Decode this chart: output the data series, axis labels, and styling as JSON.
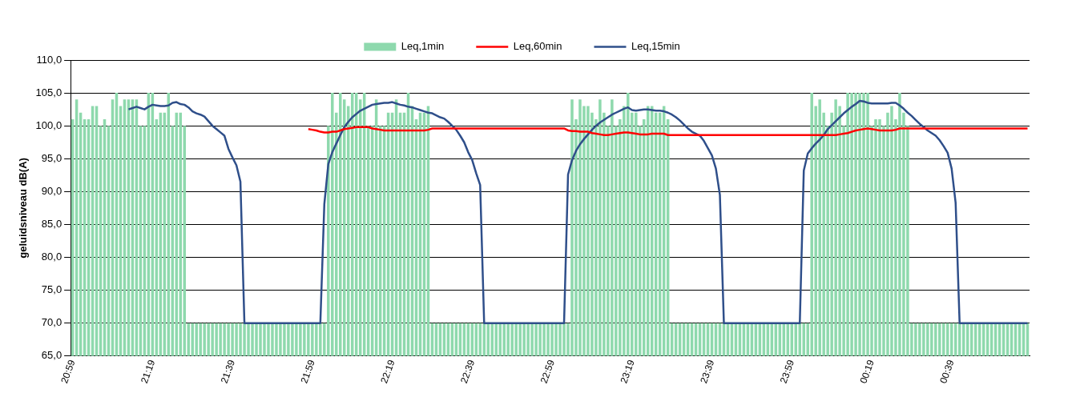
{
  "chart_data": {
    "type": "bar",
    "ylabel": "geluidsniveau dB(A)",
    "ylim": [
      65,
      110
    ],
    "yticks": [
      {
        "value": 65,
        "label": "65,0"
      },
      {
        "value": 70,
        "label": "70,0"
      },
      {
        "value": 75,
        "label": "75,0"
      },
      {
        "value": 80,
        "label": "80,0"
      },
      {
        "value": 85,
        "label": "85,0"
      },
      {
        "value": 90,
        "label": "90,0"
      },
      {
        "value": 95,
        "label": "95,0"
      },
      {
        "value": 100,
        "label": "100,0"
      },
      {
        "value": 105,
        "label": "105,0"
      },
      {
        "value": 110,
        "label": "110,0"
      }
    ],
    "grid": "y",
    "legend": "top",
    "marker": "none",
    "line_style": "solid",
    "categories": [
      "20:59",
      null,
      null,
      null,
      null,
      null,
      null,
      null,
      null,
      null,
      null,
      null,
      null,
      null,
      null,
      null,
      null,
      null,
      null,
      null,
      "21:19",
      null,
      null,
      null,
      null,
      null,
      null,
      null,
      null,
      null,
      null,
      null,
      null,
      null,
      null,
      null,
      null,
      null,
      null,
      null,
      "21:39",
      null,
      null,
      null,
      null,
      null,
      null,
      null,
      null,
      null,
      null,
      null,
      null,
      null,
      null,
      null,
      null,
      null,
      null,
      null,
      "21:59",
      null,
      null,
      null,
      null,
      null,
      null,
      null,
      null,
      null,
      null,
      null,
      null,
      null,
      null,
      null,
      null,
      null,
      null,
      null,
      "22:19",
      null,
      null,
      null,
      null,
      null,
      null,
      null,
      null,
      null,
      null,
      null,
      null,
      null,
      null,
      null,
      null,
      null,
      null,
      null,
      "22:39",
      null,
      null,
      null,
      null,
      null,
      null,
      null,
      null,
      null,
      null,
      null,
      null,
      null,
      null,
      null,
      null,
      null,
      null,
      null,
      "22:59",
      null,
      null,
      null,
      null,
      null,
      null,
      null,
      null,
      null,
      null,
      null,
      null,
      null,
      null,
      null,
      null,
      null,
      null,
      null,
      "23:19",
      null,
      null,
      null,
      null,
      null,
      null,
      null,
      null,
      null,
      null,
      null,
      null,
      null,
      null,
      null,
      null,
      null,
      null,
      null,
      "23:39",
      null,
      null,
      null,
      null,
      null,
      null,
      null,
      null,
      null,
      null,
      null,
      null,
      null,
      null,
      null,
      null,
      null,
      null,
      null,
      "23:59",
      null,
      null,
      null,
      null,
      null,
      null,
      null,
      null,
      null,
      null,
      null,
      null,
      null,
      null,
      null,
      null,
      null,
      null,
      null,
      "00:19",
      null,
      null,
      null,
      null,
      null,
      null,
      null,
      null,
      null,
      null,
      null,
      null,
      null,
      null,
      null,
      null,
      null,
      null,
      null,
      "00:39",
      null,
      null,
      null,
      null,
      null,
      null,
      null,
      null,
      null,
      null,
      null,
      null,
      null,
      null,
      null,
      null,
      null,
      null,
      null
    ],
    "series": [
      {
        "name": "Leq,1min",
        "color": "#8ed9ad",
        "values": [
          101,
          104,
          102,
          101,
          101,
          103,
          103,
          100,
          101,
          100,
          104,
          105,
          103,
          104,
          104,
          104,
          104,
          100,
          100,
          105,
          105,
          101,
          102,
          102,
          105,
          100,
          102,
          102,
          100,
          70,
          70,
          70,
          70,
          70,
          70,
          70,
          70,
          70,
          70,
          70,
          70,
          70,
          70,
          70,
          70,
          70,
          70,
          70,
          70,
          70,
          70,
          70,
          70,
          70,
          70,
          70,
          70,
          70,
          70,
          70,
          70,
          70,
          70,
          70,
          100,
          105,
          102,
          105,
          104,
          103,
          105,
          105,
          104,
          105,
          100,
          100,
          104,
          100,
          100,
          102,
          102,
          104,
          102,
          102,
          105,
          103,
          101,
          102,
          102,
          103,
          70,
          70,
          70,
          70,
          70,
          70,
          70,
          70,
          70,
          70,
          70,
          70,
          70,
          70,
          70,
          70,
          70,
          70,
          70,
          70,
          70,
          70,
          70,
          70,
          70,
          70,
          70,
          70,
          70,
          70,
          70,
          70,
          70,
          70,
          70,
          104,
          101,
          104,
          103,
          103,
          102,
          101,
          104,
          102,
          100,
          104,
          100,
          101,
          103,
          105,
          102,
          102,
          100,
          101,
          103,
          103,
          102,
          102,
          103,
          101,
          70,
          70,
          70,
          70,
          70,
          70,
          70,
          70,
          70,
          70,
          70,
          70,
          70,
          70,
          70,
          70,
          70,
          70,
          70,
          70,
          70,
          70,
          70,
          70,
          70,
          70,
          70,
          70,
          70,
          70,
          70,
          70,
          70,
          70,
          70,
          105,
          103,
          104,
          102,
          100,
          102,
          104,
          103,
          100,
          105,
          105,
          105,
          105,
          105,
          105,
          100,
          101,
          101,
          100,
          102,
          103,
          101,
          105,
          102,
          100,
          70,
          70,
          70,
          70,
          70,
          70,
          70,
          70,
          70,
          70,
          70,
          70,
          70,
          70,
          70,
          70,
          70,
          70,
          70,
          70,
          70,
          70,
          70,
          70,
          70,
          70,
          70,
          70,
          70,
          70
        ]
      },
      {
        "name": "Leq,60min",
        "type": "line",
        "color": "#ff0000",
        "values": [
          null,
          null,
          null,
          null,
          null,
          null,
          null,
          null,
          null,
          null,
          null,
          null,
          null,
          null,
          null,
          null,
          null,
          null,
          null,
          null,
          null,
          null,
          null,
          null,
          null,
          null,
          null,
          null,
          null,
          null,
          null,
          null,
          null,
          null,
          null,
          null,
          null,
          null,
          null,
          null,
          null,
          null,
          null,
          null,
          null,
          null,
          null,
          null,
          null,
          null,
          null,
          null,
          null,
          null,
          null,
          null,
          null,
          null,
          null,
          99.5,
          99.4,
          99.3,
          99.1,
          99.0,
          99.0,
          99.1,
          99.1,
          99.3,
          99.5,
          99.6,
          99.7,
          99.8,
          99.8,
          99.8,
          99.8,
          99.6,
          99.5,
          99.4,
          99.3,
          99.3,
          99.3,
          99.3,
          99.3,
          99.3,
          99.3,
          99.3,
          99.3,
          99.3,
          99.3,
          99.4,
          99.6,
          99.6,
          99.6,
          99.6,
          99.6,
          99.6,
          99.6,
          99.6,
          99.6,
          99.6,
          99.6,
          99.6,
          99.6,
          99.6,
          99.6,
          99.6,
          99.6,
          99.6,
          99.6,
          99.6,
          99.6,
          99.6,
          99.6,
          99.6,
          99.6,
          99.6,
          99.6,
          99.6,
          99.6,
          99.6,
          99.6,
          99.6,
          99.6,
          99.6,
          99.3,
          99.2,
          99.2,
          99.1,
          99.1,
          99.1,
          98.9,
          98.8,
          98.7,
          98.6,
          98.6,
          98.7,
          98.8,
          98.9,
          99.0,
          99.0,
          98.9,
          98.8,
          98.7,
          98.7,
          98.7,
          98.8,
          98.8,
          98.8,
          98.8,
          98.6,
          98.6,
          98.6,
          98.6,
          98.6,
          98.6,
          98.6,
          98.6,
          98.6,
          98.6,
          98.6,
          98.6,
          98.6,
          98.6,
          98.6,
          98.6,
          98.6,
          98.6,
          98.6,
          98.6,
          98.6,
          98.6,
          98.6,
          98.6,
          98.6,
          98.6,
          98.6,
          98.6,
          98.6,
          98.6,
          98.6,
          98.6,
          98.6,
          98.6,
          98.6,
          98.6,
          98.6,
          98.6,
          98.6,
          98.6,
          98.6,
          98.6,
          98.6,
          98.7,
          98.8,
          98.9,
          99.1,
          99.3,
          99.4,
          99.5,
          99.6,
          99.5,
          99.4,
          99.3,
          99.3,
          99.3,
          99.3,
          99.4,
          99.6,
          99.6,
          99.6,
          99.6,
          99.6,
          99.6,
          99.6,
          99.6,
          99.6,
          99.6,
          99.6,
          99.6,
          99.6,
          99.6,
          99.6,
          99.6,
          99.6,
          99.6,
          99.6,
          99.6,
          99.6,
          99.6,
          99.6,
          99.6,
          99.6,
          99.6,
          99.6,
          99.6,
          99.6,
          99.6,
          99.6,
          99.6,
          99.6
        ]
      },
      {
        "name": "Leq,15min",
        "type": "line",
        "color": "#2f4f8a",
        "values": [
          null,
          null,
          null,
          null,
          null,
          null,
          null,
          null,
          null,
          null,
          null,
          null,
          null,
          null,
          102.5,
          102.7,
          102.9,
          102.7,
          102.5,
          102.9,
          103.2,
          103.1,
          103.0,
          103.0,
          103.1,
          103.5,
          103.6,
          103.3,
          103.2,
          102.8,
          102.2,
          101.9,
          101.7,
          101.4,
          100.7,
          100.0,
          99.5,
          99.0,
          98.5,
          96.5,
          95.2,
          94.0,
          91.5,
          70,
          70,
          70,
          70,
          70,
          70,
          70,
          70,
          70,
          70,
          70,
          70,
          70,
          70,
          70,
          70,
          70,
          70,
          70,
          70,
          88.1,
          94.2,
          96.0,
          97.3,
          98.6,
          99.8,
          100.6,
          101.3,
          101.8,
          102.3,
          102.6,
          102.9,
          103.2,
          103.3,
          103.4,
          103.5,
          103.5,
          103.6,
          103.4,
          103.2,
          103.1,
          102.9,
          102.8,
          102.6,
          102.4,
          102.2,
          102.0,
          101.9,
          101.6,
          101.3,
          101.1,
          100.6,
          100.0,
          99.4,
          98.5,
          97.5,
          96.0,
          94.8,
          92.8,
          91.0,
          70,
          70,
          70,
          70,
          70,
          70,
          70,
          70,
          70,
          70,
          70,
          70,
          70,
          70,
          70,
          70,
          70,
          70,
          70,
          70,
          70,
          92.6,
          94.8,
          96.2,
          97.2,
          98.0,
          98.7,
          99.4,
          100.0,
          100.5,
          100.9,
          101.3,
          101.7,
          102.0,
          102.3,
          102.6,
          102.8,
          102.4,
          102.3,
          102.4,
          102.5,
          102.5,
          102.4,
          102.3,
          102.3,
          102.2,
          102.0,
          101.7,
          101.3,
          100.8,
          100.2,
          99.6,
          99.1,
          98.8,
          98.5,
          97.7,
          96.6,
          95.5,
          93.5,
          89.5,
          70,
          70,
          70,
          70,
          70,
          70,
          70,
          70,
          70,
          70,
          70,
          70,
          70,
          70,
          70,
          70,
          70,
          70,
          70,
          70,
          93.2,
          95.8,
          96.6,
          97.3,
          97.9,
          98.6,
          99.5,
          100.1,
          100.7,
          101.3,
          101.9,
          102.4,
          102.9,
          103.3,
          103.8,
          103.7,
          103.5,
          103.4,
          103.4,
          103.4,
          103.4,
          103.4,
          103.5,
          103.5,
          103.1,
          102.6,
          102.0,
          101.5,
          100.9,
          100.3,
          99.8,
          99.3,
          98.9,
          98.5,
          97.8,
          96.9,
          95.9,
          93.5,
          88.3,
          70,
          70,
          70,
          70,
          70,
          70,
          70,
          70,
          70,
          70,
          70,
          70,
          70,
          70,
          70,
          70,
          70,
          70
        ]
      }
    ]
  }
}
